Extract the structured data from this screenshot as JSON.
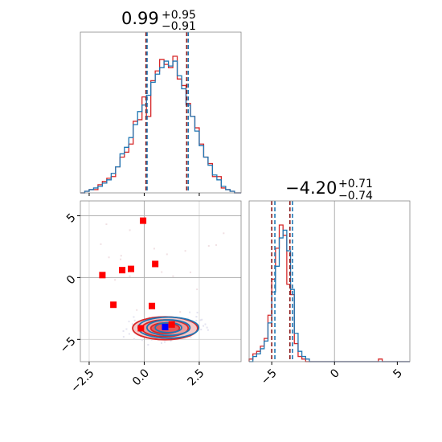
{
  "chart_data": [
    {
      "type": "histogram",
      "panel": "top-left",
      "title_value": "0.99",
      "title_plus": "+0.95",
      "title_minus": "−0.91",
      "xlim": [
        -2.9,
        4.4
      ],
      "series": [
        {
          "color": "#d62728",
          "bin_edges": [
            -2.9,
            -2.7,
            -2.5,
            -2.3,
            -2.1,
            -1.9,
            -1.7,
            -1.5,
            -1.3,
            -1.1,
            -0.9,
            -0.7,
            -0.5,
            -0.3,
            -0.1,
            0.1,
            0.3,
            0.5,
            0.7,
            0.9,
            1.1,
            1.3,
            1.5,
            1.7,
            1.9,
            2.1,
            2.3,
            2.5,
            2.7,
            2.9,
            3.1,
            3.3,
            3.5,
            3.7,
            3.9,
            4.1,
            4.4
          ],
          "counts": [
            0,
            1,
            2,
            2,
            5,
            7,
            9,
            10,
            16,
            22,
            25,
            30,
            44,
            45,
            59,
            47,
            69,
            75,
            82,
            79,
            77,
            84,
            70,
            66,
            55,
            47,
            40,
            30,
            22,
            18,
            10,
            10,
            3,
            2,
            1,
            0
          ]
        },
        {
          "color": "#1f77b4",
          "bin_edges": [
            -2.9,
            -2.7,
            -2.5,
            -2.3,
            -2.1,
            -1.9,
            -1.7,
            -1.5,
            -1.3,
            -1.1,
            -0.9,
            -0.7,
            -0.5,
            -0.3,
            -0.1,
            0.1,
            0.3,
            0.5,
            0.7,
            0.9,
            1.1,
            1.3,
            1.5,
            1.7,
            1.9,
            2.1,
            2.3,
            2.5,
            2.7,
            2.9,
            3.1,
            3.3,
            3.5,
            3.7,
            3.9,
            4.1,
            4.4
          ],
          "counts": [
            0,
            1,
            2,
            3,
            4,
            6,
            8,
            12,
            16,
            24,
            28,
            34,
            42,
            50,
            54,
            60,
            68,
            73,
            77,
            81,
            78,
            81,
            72,
            64,
            54,
            47,
            38,
            29,
            22,
            17,
            11,
            8,
            4,
            2,
            1,
            0
          ]
        }
      ],
      "quantile_lines": [
        {
          "x": 0.08,
          "color": "#8b1a1a"
        },
        {
          "x": 0.13,
          "color": "#1f77b4"
        },
        {
          "x": 1.93,
          "color": "#8b1a1a"
        },
        {
          "x": 2.0,
          "color": "#1f77b4"
        }
      ]
    },
    {
      "type": "scatter",
      "panel": "bottom-left",
      "xlim": [
        -2.9,
        4.4
      ],
      "ylim": [
        -6.8,
        6.2
      ],
      "x_ticks": [
        -2.5,
        0.0,
        2.5
      ],
      "x_tick_labels": [
        "−2.5",
        "0.0",
        "2.5"
      ],
      "y_ticks": [
        -5,
        0,
        5
      ],
      "y_tick_labels": [
        "−5",
        "0",
        "5"
      ],
      "grid": true,
      "truth_lines": {
        "x": 0.0,
        "y": 0.0,
        "y2": 5.0,
        "color": "#b0b0b0"
      },
      "series": [
        {
          "marker": "square",
          "color": "#ff0000",
          "points": [
            [
              -0.05,
              4.6
            ],
            [
              -1.9,
              0.2
            ],
            [
              -1.0,
              0.6
            ],
            [
              -0.6,
              0.7
            ],
            [
              0.5,
              1.1
            ],
            [
              -1.4,
              -2.2
            ],
            [
              0.35,
              -2.3
            ],
            [
              -0.15,
              -4.1
            ],
            [
              1.25,
              -3.8
            ]
          ]
        },
        {
          "marker": "square",
          "color": "#0000ff",
          "points": [
            [
              0.95,
              -4.0
            ]
          ]
        }
      ],
      "contours": [
        {
          "color": "#d62728",
          "cx": 0.95,
          "cy": -4.1,
          "levels": [
            [
              2.95,
              1.85
            ],
            [
              2.1,
              1.35
            ],
            [
              1.3,
              0.85
            ]
          ]
        },
        {
          "color": "#1f77b4",
          "cx": 1.1,
          "cy": -4.05,
          "levels": [
            [
              2.75,
              1.7
            ],
            [
              1.95,
              1.25
            ],
            [
              1.2,
              0.8
            ]
          ]
        }
      ]
    },
    {
      "type": "histogram",
      "panel": "bottom-right",
      "title_value": "−4.20",
      "title_plus": "+0.71",
      "title_minus": "−0.74",
      "xlim": [
        -6.8,
        6.0
      ],
      "x_ticks": [
        -5,
        0,
        5
      ],
      "x_tick_labels": [
        "−5",
        "0",
        "5"
      ],
      "truth_line": {
        "x": 0.0,
        "color": "#b0b0b0"
      },
      "series": [
        {
          "color": "#d62728",
          "bin_edges": [
            -6.8,
            -6.5,
            -6.2,
            -5.9,
            -5.6,
            -5.3,
            -5.0,
            -4.7,
            -4.4,
            -4.1,
            -3.8,
            -3.5,
            -3.2,
            -2.9,
            -2.6,
            -2.3,
            -2.0,
            3.5,
            3.8,
            4.1,
            6.0
          ],
          "counts": [
            1,
            3,
            4,
            6,
            9,
            18,
            32,
            44,
            53,
            49,
            30,
            26,
            7,
            2,
            1,
            0,
            0,
            1,
            0,
            0
          ]
        },
        {
          "color": "#1f77b4",
          "bin_edges": [
            -6.8,
            -6.5,
            -6.2,
            -5.9,
            -5.6,
            -5.3,
            -5.0,
            -4.7,
            -4.4,
            -4.1,
            -3.8,
            -3.5,
            -3.2,
            -2.9,
            -2.6,
            -2.3,
            -2.0,
            3.5,
            3.8,
            4.1,
            6.0
          ],
          "counts": [
            0,
            2,
            3,
            5,
            8,
            15,
            27,
            37,
            48,
            51,
            43,
            28,
            11,
            4,
            2,
            1,
            0,
            0,
            0,
            0
          ]
        }
      ],
      "quantile_lines": [
        {
          "x": -5.0,
          "color": "#8b1a1a"
        },
        {
          "x": -4.75,
          "color": "#1f77b4"
        },
        {
          "x": -3.55,
          "color": "#8b1a1a"
        },
        {
          "x": -3.35,
          "color": "#1f77b4"
        }
      ]
    }
  ]
}
